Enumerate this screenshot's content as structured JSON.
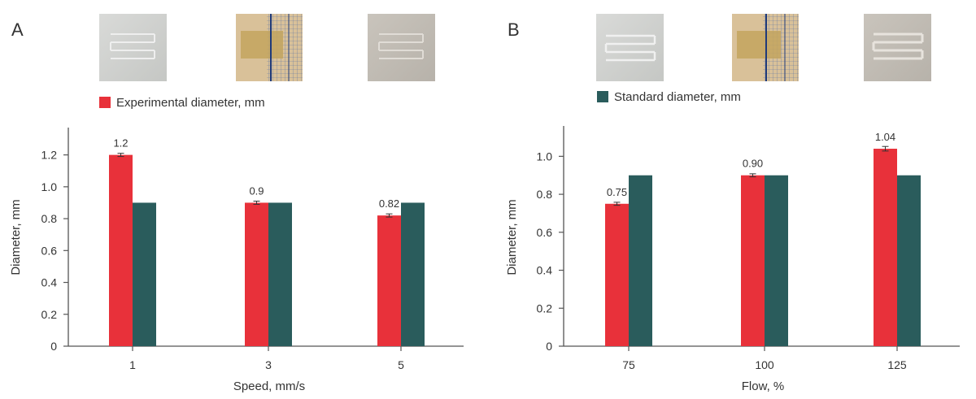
{
  "colors": {
    "experimental": "#e8313a",
    "standard": "#2a5c5c",
    "axis": "#555555",
    "text": "#333333"
  },
  "legend": {
    "experimental": "Experimental diameter, mm",
    "standard": "Standard diameter, mm"
  },
  "photos": [
    "photo-speed-1",
    "photo-speed-3",
    "photo-speed-5",
    "photo-flow-75",
    "photo-flow-100",
    "photo-flow-125"
  ],
  "chart_data": [
    {
      "panel": "A",
      "type": "bar",
      "xlabel": "Speed, mm/s",
      "ylabel": "Diameter, mm",
      "ylim": [
        0,
        1.3
      ],
      "yticks": [
        "0",
        "0.2",
        "0.4",
        "0.6",
        "0.8",
        "1.0",
        "1.2"
      ],
      "yticks_values": [
        0,
        0.2,
        0.4,
        0.6,
        0.8,
        1.0,
        1.2
      ],
      "categories": [
        "1",
        "3",
        "5"
      ],
      "series": [
        {
          "name": "Experimental diameter, mm",
          "values": [
            1.2,
            0.9,
            0.82
          ],
          "errors": [
            0.01,
            0.01,
            0.01
          ],
          "labels": [
            "1.2",
            "0.9",
            "0.82"
          ]
        },
        {
          "name": "Standard diameter, mm",
          "values": [
            0.9,
            0.9,
            0.9
          ]
        }
      ]
    },
    {
      "panel": "B",
      "type": "bar",
      "xlabel": "Flow, %",
      "ylabel": "Diameter, mm",
      "ylim": [
        0,
        1.1
      ],
      "yticks": [
        "0",
        "0.2",
        "0.4",
        "0.6",
        "0.8",
        "1.0"
      ],
      "yticks_values": [
        0,
        0.2,
        0.4,
        0.6,
        0.8,
        1.0
      ],
      "categories": [
        "75",
        "100",
        "125"
      ],
      "series": [
        {
          "name": "Experimental diameter, mm",
          "values": [
            0.75,
            0.9,
            1.04
          ],
          "errors": [
            0.008,
            0.008,
            0.012
          ],
          "labels": [
            "0.75",
            "0.90",
            "1.04"
          ]
        },
        {
          "name": "Standard diameter, mm",
          "values": [
            0.9,
            0.9,
            0.9
          ]
        }
      ]
    }
  ]
}
